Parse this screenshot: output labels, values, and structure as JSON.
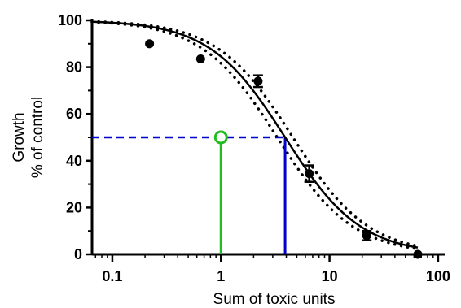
{
  "chart_data": {
    "type": "scatter",
    "title": "",
    "xlabel": "Sum of toxic units",
    "ylabel": [
      "Growth",
      "% of control"
    ],
    "x_scale": "log",
    "xlim": [
      0.065,
      115
    ],
    "ylim": [
      0,
      100
    ],
    "x_ticks": [
      0.1,
      1,
      10,
      100
    ],
    "x_tick_labels": [
      "0.1",
      "1",
      "10",
      "100"
    ],
    "y_ticks": [
      0,
      20,
      40,
      60,
      80,
      100
    ],
    "y_tick_labels": [
      "0",
      "20",
      "40",
      "60",
      "80",
      "100"
    ],
    "grid": false,
    "colors": {
      "data": "#000000",
      "reference_line": "#0000cc",
      "reference_point": "#22bb22",
      "fit": "#000000"
    },
    "points": [
      {
        "x": 0.22,
        "y": 90,
        "err": 0
      },
      {
        "x": 0.65,
        "y": 83.5,
        "err": 0
      },
      {
        "x": 2.2,
        "y": 74,
        "err": 2.5
      },
      {
        "x": 6.5,
        "y": 34.5,
        "err": 3.5
      },
      {
        "x": 22,
        "y": 8,
        "err": 2
      },
      {
        "x": 65,
        "y": 0,
        "err": 0
      }
    ],
    "fit": {
      "ec50": 3.9,
      "hill": 1.25,
      "top": 100,
      "bottom": 0
    },
    "ci_upper": {
      "ec50": 4.6,
      "hill": 1.25
    },
    "ci_lower": {
      "ec50": 3.3,
      "hill": 1.25
    },
    "fit_range": [
      0.065,
      65
    ],
    "reference_line": {
      "y": 50,
      "x": 3.9
    },
    "reference_point": {
      "x": 1,
      "y": 50
    }
  }
}
